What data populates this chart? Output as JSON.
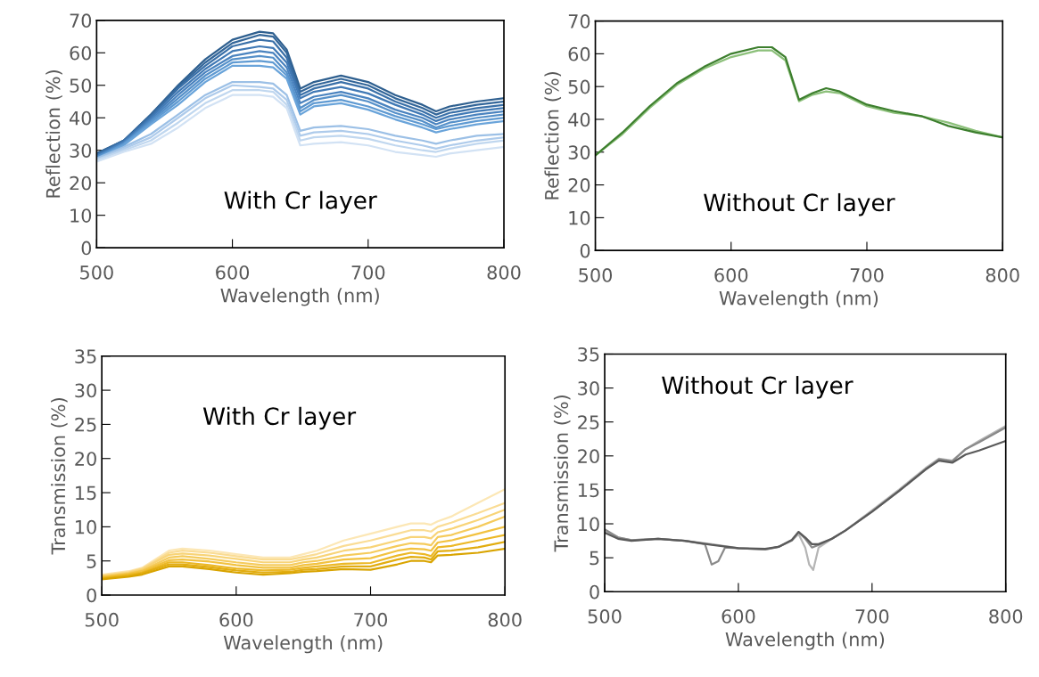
{
  "chart_data": [
    {
      "type": "line",
      "xlabel": "Wavelength (nm)",
      "ylabel": "Reflection (%)",
      "annotations": [
        "With Cr layer"
      ],
      "xlim": [
        500,
        800
      ],
      "xticks": [
        500,
        600,
        700,
        800
      ],
      "ylim": [
        0,
        70
      ],
      "yticks": [
        0,
        10,
        20,
        30,
        40,
        50,
        60,
        70
      ],
      "x": [
        500,
        520,
        540,
        560,
        580,
        600,
        620,
        630,
        640,
        650,
        660,
        680,
        700,
        720,
        740,
        750,
        760,
        780,
        800
      ],
      "series": [
        {
          "color": "#2e5f8f",
          "values": [
            29,
            33,
            41,
            50,
            58,
            64,
            66.5,
            66,
            61,
            49,
            51,
            53,
            51,
            47,
            44,
            42,
            43.5,
            45,
            46
          ]
        },
        {
          "color": "#336699",
          "values": [
            29,
            33,
            41,
            49.5,
            57,
            63,
            65.5,
            65,
            60,
            48,
            50,
            52,
            50,
            46,
            43,
            41,
            42.5,
            44,
            45
          ]
        },
        {
          "color": "#3a70a8",
          "values": [
            28.5,
            33,
            40.5,
            49,
            56,
            62,
            64,
            63.5,
            58.5,
            47,
            49,
            51,
            49,
            45,
            42,
            40,
            41.5,
            43,
            44
          ]
        },
        {
          "color": "#4079b5",
          "values": [
            28.5,
            32.5,
            40,
            48,
            55,
            60.5,
            62,
            61.5,
            57,
            46,
            48,
            49.5,
            47.5,
            44,
            41,
            39,
            40.5,
            42,
            43
          ]
        },
        {
          "color": "#4a83bf",
          "values": [
            28,
            32.5,
            39.5,
            47,
            54,
            59,
            60.5,
            60,
            55.5,
            44.5,
            46.5,
            48,
            46,
            42.5,
            40,
            38,
            39.5,
            41,
            42
          ]
        },
        {
          "color": "#5590c9",
          "values": [
            28,
            32,
            39,
            46,
            53,
            58,
            59,
            58.5,
            54,
            43,
            45.5,
            47,
            45,
            41.5,
            39,
            37,
            38.5,
            40,
            41
          ]
        },
        {
          "color": "#5f9ad2",
          "values": [
            27.5,
            32,
            38.5,
            45,
            52,
            57,
            57.5,
            57,
            53,
            42,
            44.5,
            45.5,
            43.5,
            40.5,
            38,
            36.5,
            37.5,
            39,
            40
          ]
        },
        {
          "color": "#6aa4da",
          "values": [
            27.5,
            31.5,
            38,
            44,
            51,
            56,
            56,
            55.5,
            52,
            41,
            43.5,
            44.5,
            42.5,
            39.5,
            37,
            35.5,
            36.5,
            38,
            39
          ]
        },
        {
          "color": "#9cc0e6",
          "values": [
            27.5,
            31,
            35,
            41,
            47,
            51,
            51,
            50.5,
            47,
            36,
            37,
            37.5,
            36.5,
            34.5,
            33,
            32,
            33,
            34.5,
            35
          ]
        },
        {
          "color": "#aecbeb",
          "values": [
            27,
            30.5,
            34,
            40,
            46,
            50,
            49.5,
            49,
            45.5,
            34.5,
            35.5,
            36,
            35,
            33,
            31.5,
            30.5,
            31.5,
            33,
            34
          ]
        },
        {
          "color": "#c0d7ef",
          "values": [
            27,
            30,
            33,
            38.5,
            44.5,
            48.5,
            48.5,
            48,
            44,
            33,
            34,
            34.5,
            33.5,
            31.5,
            30,
            29.5,
            30.5,
            32,
            33
          ]
        },
        {
          "color": "#d2e2f4",
          "values": [
            26.5,
            29.5,
            32,
            37,
            43,
            47,
            47,
            46.5,
            43,
            31.5,
            32,
            32.5,
            31.5,
            29.5,
            28.5,
            28,
            29,
            30,
            31
          ]
        }
      ]
    },
    {
      "type": "line",
      "xlabel": "Wavelength (nm)",
      "ylabel": "Reflection (%)",
      "annotations": [
        "Without Cr layer"
      ],
      "xlim": [
        500,
        800
      ],
      "xticks": [
        500,
        600,
        700,
        800
      ],
      "ylim": [
        0,
        70
      ],
      "yticks": [
        0,
        10,
        20,
        30,
        40,
        50,
        60,
        70
      ],
      "x": [
        500,
        520,
        540,
        560,
        580,
        600,
        620,
        630,
        640,
        650,
        660,
        670,
        680,
        700,
        720,
        740,
        750,
        760,
        780,
        800
      ],
      "series": [
        {
          "color": "#8cc07a",
          "values": [
            29,
            35.5,
            43.5,
            50.5,
            55.5,
            59,
            61,
            61,
            58,
            45.5,
            47.5,
            48.5,
            48,
            44,
            42,
            41,
            40,
            39,
            36.5,
            34.5
          ]
        },
        {
          "color": "#3d7f2e",
          "values": [
            29,
            36,
            44,
            51,
            56,
            60,
            62,
            62,
            59,
            46,
            48,
            49.5,
            48.5,
            44.5,
            42.5,
            41,
            39.5,
            38,
            36,
            34.5
          ]
        }
      ]
    },
    {
      "type": "line",
      "xlabel": "Wavelength (nm)",
      "ylabel": "Transmission (%)",
      "annotations": [
        "With Cr layer"
      ],
      "xlim": [
        500,
        800
      ],
      "xticks": [
        500,
        600,
        700,
        800
      ],
      "ylim": [
        0,
        35
      ],
      "yticks": [
        0,
        5,
        10,
        15,
        20,
        25,
        30,
        35
      ],
      "x": [
        500,
        520,
        530,
        550,
        560,
        580,
        600,
        620,
        640,
        650,
        660,
        680,
        700,
        720,
        730,
        740,
        745,
        750,
        760,
        780,
        800
      ],
      "series": [
        {
          "color": "#fce7b5",
          "values": [
            3,
            3.5,
            4,
            6.5,
            6.8,
            6.5,
            6,
            5.5,
            5.5,
            6,
            6.5,
            8,
            9,
            10,
            10.5,
            10.5,
            10.3,
            10.8,
            11.5,
            13.5,
            15.5
          ]
        },
        {
          "color": "#fadc94",
          "values": [
            2.9,
            3.4,
            3.9,
            6.2,
            6.5,
            6.2,
            5.7,
            5.2,
            5.2,
            5.6,
            6,
            7.2,
            8,
            9,
            9.5,
            9.5,
            9.3,
            10,
            10.6,
            12,
            13.5
          ]
        },
        {
          "color": "#f8d478",
          "values": [
            2.8,
            3.3,
            3.8,
            5.9,
            6.1,
            5.8,
            5.3,
            4.8,
            4.8,
            5.2,
            5.5,
            6.5,
            7,
            8,
            8.5,
            8.5,
            8.3,
            9.2,
            9.7,
            11,
            12.5
          ]
        },
        {
          "color": "#f5cb5c",
          "values": [
            2.7,
            3.2,
            3.6,
            5.5,
            5.7,
            5.3,
            4.8,
            4.4,
            4.4,
            4.8,
            5,
            5.8,
            6.2,
            7.2,
            7.6,
            7.5,
            7.3,
            8.5,
            8.8,
            10,
            11.5
          ]
        },
        {
          "color": "#f2c240",
          "values": [
            2.6,
            3.1,
            3.5,
            5.1,
            5.2,
            4.9,
            4.4,
            4,
            4,
            4.4,
            4.6,
            5.2,
            5.4,
            6.5,
            6.8,
            6.7,
            6.5,
            7.7,
            8,
            9,
            10
          ]
        },
        {
          "color": "#ecb826",
          "values": [
            2.5,
            3,
            3.3,
            4.8,
            4.8,
            4.4,
            3.9,
            3.6,
            3.7,
            4,
            4.2,
            4.6,
            4.7,
            5.8,
            6.2,
            6,
            5.7,
            7,
            7.2,
            8,
            8.8
          ]
        },
        {
          "color": "#e2ad10",
          "values": [
            2.4,
            2.8,
            3.2,
            4.5,
            4.5,
            4.1,
            3.6,
            3.3,
            3.4,
            3.7,
            3.8,
            4.2,
            4.2,
            5.2,
            5.6,
            5.5,
            5.2,
            6.4,
            6.5,
            7,
            7.8
          ]
        },
        {
          "color": "#d9a400",
          "values": [
            2.3,
            2.7,
            3,
            4.2,
            4.2,
            3.8,
            3.3,
            3,
            3.2,
            3.4,
            3.5,
            3.8,
            3.7,
            4.5,
            5,
            5,
            4.8,
            5.8,
            5.9,
            6.2,
            6.8
          ]
        }
      ]
    },
    {
      "type": "line",
      "xlabel": "Wavelength (nm)",
      "ylabel": "Transmission (%)",
      "annotations": [
        "Without Cr layer"
      ],
      "xlim": [
        500,
        800
      ],
      "xticks": [
        500,
        600,
        700,
        800
      ],
      "ylim": [
        0,
        35
      ],
      "yticks": [
        0,
        5,
        10,
        15,
        20,
        25,
        30,
        35
      ],
      "series": [
        {
          "color": "#b5b5b5",
          "x": [
            500,
            510,
            520,
            540,
            560,
            580,
            600,
            620,
            630,
            640,
            645,
            650,
            653,
            656,
            660,
            670,
            680,
            700,
            720,
            740,
            750,
            760,
            770,
            780,
            800
          ],
          "values": [
            9,
            8,
            7.6,
            7.8,
            7.5,
            7,
            6.4,
            6.2,
            6.6,
            7.5,
            8.5,
            6.5,
            4,
            3.2,
            6.5,
            7.8,
            9,
            12,
            15,
            18.2,
            19.6,
            19.3,
            21,
            22.2,
            24.4
          ]
        },
        {
          "color": "#8a8a8a",
          "x": [
            500,
            510,
            520,
            540,
            560,
            575,
            580,
            585,
            590,
            600,
            620,
            630,
            640,
            645,
            650,
            655,
            660,
            670,
            680,
            700,
            720,
            740,
            750,
            760,
            770,
            780,
            800
          ],
          "values": [
            9.2,
            8,
            7.6,
            7.8,
            7.5,
            7,
            4,
            4.5,
            6.5,
            6.4,
            6.2,
            6.6,
            7.6,
            8.8,
            7.8,
            6.5,
            6.9,
            7.8,
            9,
            11.8,
            14.8,
            18,
            19.5,
            19.2,
            21,
            22,
            24.2
          ]
        },
        {
          "color": "#5a5a5a",
          "x": [
            500,
            510,
            520,
            540,
            560,
            580,
            600,
            620,
            630,
            640,
            645,
            650,
            655,
            660,
            670,
            680,
            700,
            720,
            740,
            750,
            760,
            770,
            780,
            800
          ],
          "values": [
            8.7,
            7.8,
            7.5,
            7.8,
            7.5,
            6.9,
            6.4,
            6.3,
            6.6,
            7.6,
            8.8,
            8,
            7,
            7,
            7.8,
            9,
            11.8,
            14.8,
            18,
            19.3,
            19,
            20.2,
            20.8,
            22.2
          ]
        }
      ]
    }
  ]
}
